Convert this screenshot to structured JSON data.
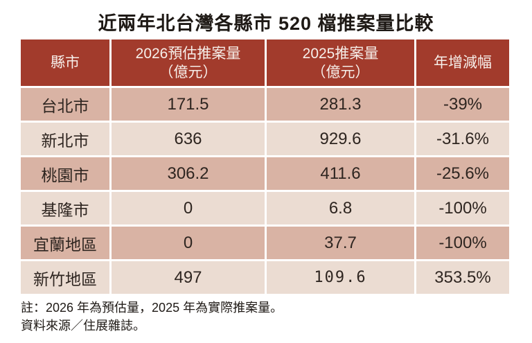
{
  "title": "近兩年北台灣各縣市 520 檔推案量比較",
  "colors": {
    "header_bg": "#A23B2C",
    "row_dark": "#D9B3A4",
    "row_light": "#EBDCD2",
    "text_dark": "#2E2520",
    "header_text": "#F7EFEA",
    "page_bg": "#FFFFFF"
  },
  "table": {
    "headers": [
      {
        "label": "縣市",
        "sub": ""
      },
      {
        "label": "2026預估推案量",
        "sub": "（億元）"
      },
      {
        "label": "2025推案量",
        "sub": "（億元）"
      },
      {
        "label": "年增減幅",
        "sub": ""
      }
    ],
    "rows": [
      {
        "city": "台北市",
        "v2026": "171.5",
        "v2025": "281.3",
        "yoy": "-39%"
      },
      {
        "city": "新北市",
        "v2026": "636",
        "v2025": "929.6",
        "yoy": "-31.6%"
      },
      {
        "city": "桃園市",
        "v2026": "306.2",
        "v2025": "411.6",
        "yoy": "-25.6%"
      },
      {
        "city": "基隆市",
        "v2026": "0",
        "v2025": "6.8",
        "yoy": "-100%"
      },
      {
        "city": "宜蘭地區",
        "v2026": "0",
        "v2025": "37.7",
        "yoy": "-100%"
      },
      {
        "city": "新竹地區",
        "v2026": "497",
        "v2025": "109.6",
        "yoy": "353.5%"
      }
    ]
  },
  "notes": [
    "註：2026 年為預估量，2025 年為實際推案量。",
    "資料來源／住展雜誌。"
  ],
  "chart_data": {
    "type": "table",
    "title": "近兩年北台灣各縣市 520 檔推案量比較",
    "columns": [
      "縣市",
      "2026預估推案量（億元）",
      "2025推案量（億元）",
      "年增減幅"
    ],
    "rows": [
      [
        "台北市",
        171.5,
        281.3,
        "-39%"
      ],
      [
        "新北市",
        636,
        929.6,
        "-31.6%"
      ],
      [
        "桃園市",
        306.2,
        411.6,
        "-25.6%"
      ],
      [
        "基隆市",
        0,
        6.8,
        "-100%"
      ],
      [
        "宜蘭地區",
        0,
        37.7,
        "-100%"
      ],
      [
        "新竹地區",
        497,
        109.6,
        "353.5%"
      ]
    ],
    "notes": [
      "註：2026 年為預估量，2025 年為實際推案量。",
      "資料來源／住展雜誌。"
    ],
    "layout_hints": {
      "header_style": "dark-red background, white text",
      "row_striping": [
        "dark-tan",
        "light-tan"
      ],
      "cell_alignment": "center"
    }
  }
}
